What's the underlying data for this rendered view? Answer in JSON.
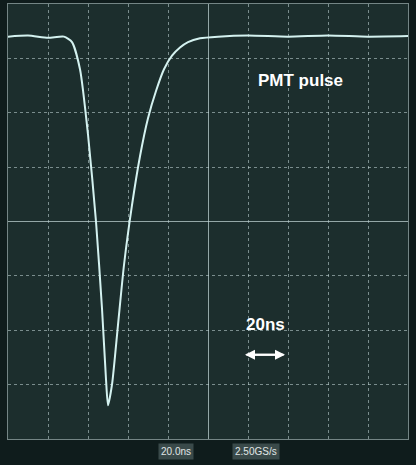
{
  "chart_data": {
    "type": "line",
    "x": [
      -100,
      -90,
      -80,
      -72,
      -68,
      -64,
      -60,
      -56,
      -53,
      -51,
      -50,
      -48,
      -45,
      -42,
      -38,
      -34,
      -30,
      -26,
      -22,
      -18,
      -14,
      -10,
      -4,
      5,
      20,
      40,
      60,
      80,
      100
    ],
    "values": [
      3.4,
      3.42,
      3.38,
      3.4,
      3.3,
      2.8,
      1.6,
      0.0,
      -1.6,
      -2.9,
      -3.38,
      -3.0,
      -1.9,
      -0.8,
      0.3,
      1.2,
      1.9,
      2.4,
      2.8,
      3.05,
      3.2,
      3.3,
      3.37,
      3.4,
      3.42,
      3.4,
      3.42,
      3.4,
      3.41
    ],
    "color": "#d4f2f0",
    "xlim": [
      -100,
      100
    ],
    "xticks": [
      -100,
      -80,
      -60,
      -40,
      -20,
      0,
      20,
      40,
      60,
      80,
      100
    ],
    "ylim": [
      -4,
      4
    ],
    "yticks": [
      -4,
      -3,
      -2,
      -1,
      0,
      1,
      2,
      3,
      4
    ],
    "grid": true,
    "tick_labels": false,
    "annotations": [
      {
        "text": "PMT pulse",
        "x": 46,
        "y": 2.6
      },
      {
        "text": "20ns",
        "x": 28.5,
        "y": -1.9
      }
    ],
    "status": [
      "20.0ns",
      "2.50GS/s"
    ]
  }
}
